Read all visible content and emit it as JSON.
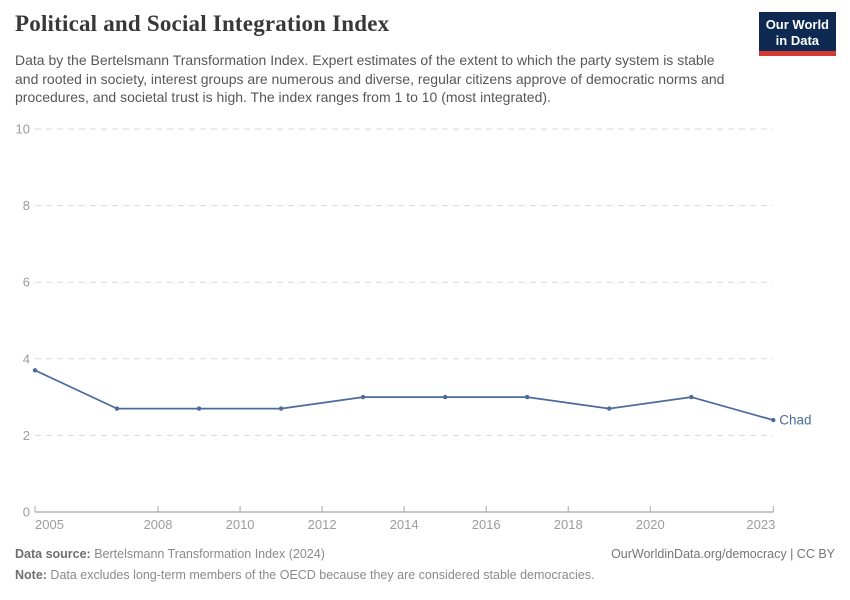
{
  "header": {
    "title": "Political and Social Integration Index",
    "subtitle": "Data by the Bertelsmann Transformation Index. Expert estimates of the extent to which the party system is stable and rooted in society, interest groups are numerous and diverse, regular citizens approve of democratic norms and procedures, and societal trust is high. The index ranges from 1 to 10 (most integrated).",
    "logo": {
      "line1": "Our World",
      "line2": "in Data",
      "bg_color": "#0e2a52",
      "accent_color": "#d23a32"
    }
  },
  "chart_data": {
    "type": "line",
    "title": "Political and Social Integration Index",
    "x": [
      2005,
      2007,
      2009,
      2011,
      2013,
      2015,
      2017,
      2019,
      2021,
      2023
    ],
    "series": [
      {
        "name": "Chad",
        "color": "#4c6a9c",
        "values": [
          3.7,
          2.7,
          2.7,
          2.7,
          3.0,
          3.0,
          3.0,
          2.7,
          3.0,
          2.4
        ]
      }
    ],
    "xlim": [
      2005,
      2023
    ],
    "ylim": [
      0,
      10
    ],
    "x_tick_labels": [
      2005,
      2008,
      2010,
      2012,
      2014,
      2016,
      2018,
      2020,
      2023
    ],
    "y_tick_labels": [
      0,
      2,
      4,
      6,
      8,
      10
    ],
    "grid": "horizontal-dashed",
    "legend": "end-of-line-label"
  },
  "footer": {
    "source_label": "Data source:",
    "source_text": " Bertelsmann Transformation Index (2024)",
    "credit": "OurWorldinData.org/democracy | CC BY",
    "note_label": "Note:",
    "note_text": " Data excludes long-term members of the OECD because they are considered stable democracies."
  }
}
